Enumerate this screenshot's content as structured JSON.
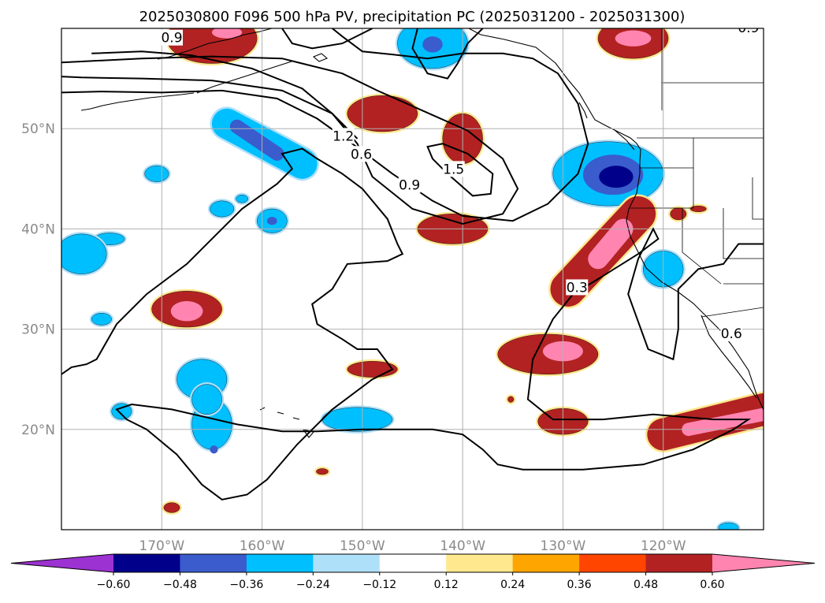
{
  "chart_data": {
    "type": "map-contour",
    "title": "2025030800 F096 500 hPa PV, precipitation PC (2025031200 - 2025031300)",
    "lon_range": [
      -180,
      -110
    ],
    "lat_range": [
      10,
      60
    ],
    "xtick_labels": [
      {
        "lon": -170,
        "label": "170°W"
      },
      {
        "lon": -160,
        "label": "160°W"
      },
      {
        "lon": -150,
        "label": "150°W"
      },
      {
        "lon": -140,
        "label": "140°W"
      },
      {
        "lon": -130,
        "label": "130°W"
      },
      {
        "lon": -120,
        "label": "120°W"
      }
    ],
    "ytick_labels": [
      {
        "lat": 20,
        "label": "20°N"
      },
      {
        "lat": 30,
        "label": "30°N"
      },
      {
        "lat": 40,
        "label": "40°N"
      },
      {
        "lat": 50,
        "label": "50°N"
      }
    ],
    "grid": true,
    "pv_contour_labels": [
      {
        "value": "0.9",
        "lon": -169.0,
        "lat": 59.0
      },
      {
        "value": "0.9",
        "lon": -147.5,
        "lat": 60.5
      },
      {
        "value": "1.2",
        "lon": -151.9,
        "lat": 49.2
      },
      {
        "value": "0.6",
        "lon": -150.1,
        "lat": 47.4
      },
      {
        "value": "0.9",
        "lon": -145.3,
        "lat": 44.3
      },
      {
        "value": "1.5",
        "lon": -140.9,
        "lat": 45.9
      },
      {
        "value": "0.3",
        "lon": -128.6,
        "lat": 34.1
      },
      {
        "value": "0.6",
        "lon": -119.6,
        "lat": 61.1
      },
      {
        "value": "0.9",
        "lon": -111.5,
        "lat": 60.0
      },
      {
        "value": "0.6",
        "lon": -113.2,
        "lat": 29.5
      }
    ],
    "colorbar": {
      "levels": [
        -0.72,
        -0.6,
        -0.48,
        -0.36,
        -0.24,
        -0.12,
        0.12,
        0.24,
        0.36,
        0.48,
        0.6,
        0.72
      ],
      "tick_labels": [
        "−0.60",
        "−0.48",
        "−0.36",
        "−0.24",
        "−0.12",
        "0.12",
        "0.24",
        "0.36",
        "0.48",
        "0.60"
      ],
      "colors": [
        "#9c32d2",
        "#00008b",
        "#3a5ccc",
        "#00bfff",
        "#afe0fa",
        "#ffffff",
        "#ffe88e",
        "#ffa500",
        "#ff4500",
        "#b22222",
        "#ff85b0"
      ],
      "extend": "both"
    },
    "precip_blobs": [
      {
        "lon": -165.0,
        "lat": 59.0,
        "rlon": 4.5,
        "rlat": 2.5,
        "value": 0.4
      },
      {
        "lon": -163.5,
        "lat": 59.6,
        "rlon": 1.5,
        "rlat": 0.6,
        "value": 0.5
      },
      {
        "lon": -143.0,
        "lat": 58.5,
        "rlon": 3.5,
        "rlat": 2.5,
        "value": -0.4
      },
      {
        "lon": -143.0,
        "lat": 58.4,
        "rlon": 1.0,
        "rlat": 0.8,
        "value": -0.5
      },
      {
        "lon": -148.0,
        "lat": 51.5,
        "rlon": 3.5,
        "rlat": 1.8,
        "value": 0.4
      },
      {
        "lon": -140.0,
        "lat": 49.0,
        "rlon": 2.0,
        "rlat": 2.5,
        "value": 0.4
      },
      {
        "lon": -141.0,
        "lat": 40.0,
        "rlon": 3.5,
        "rlat": 1.5,
        "value": 0.4
      },
      {
        "lon": -123.0,
        "lat": 59.0,
        "rlon": 3.5,
        "rlat": 2.0,
        "value": 0.4
      },
      {
        "lon": -123.0,
        "lat": 59.0,
        "rlon": 1.8,
        "rlat": 0.8,
        "value": 0.5
      },
      {
        "lon": -125.5,
        "lat": 45.5,
        "rlon": 5.5,
        "rlat": 3.2,
        "value": -0.4
      },
      {
        "lon": -125.0,
        "lat": 45.4,
        "rlon": 3.0,
        "rlat": 2.0,
        "value": -0.5
      },
      {
        "lon": -124.7,
        "lat": 45.2,
        "rlon": 1.7,
        "rlat": 1.1,
        "value": -0.62
      },
      {
        "lon": -118.5,
        "lat": 41.5,
        "rlon": 0.8,
        "rlat": 0.6,
        "value": 0.4
      },
      {
        "lon": -120.0,
        "lat": 36.0,
        "rlon": 2.0,
        "rlat": 1.8,
        "value": -0.4
      },
      {
        "lon": -167.5,
        "lat": 32.0,
        "rlon": 3.5,
        "rlat": 1.8,
        "value": 0.4
      },
      {
        "lon": -167.5,
        "lat": 31.8,
        "rlon": 1.6,
        "rlat": 1.0,
        "value": 0.5
      },
      {
        "lon": -149.0,
        "lat": 26.0,
        "rlon": 2.5,
        "rlat": 0.8,
        "value": 0.4
      },
      {
        "lon": -131.5,
        "lat": 27.5,
        "rlon": 5.0,
        "rlat": 2.0,
        "value": 0.4
      },
      {
        "lon": -130.0,
        "lat": 27.8,
        "rlon": 2.0,
        "rlat": 1.0,
        "value": 0.5
      },
      {
        "lon": -130.0,
        "lat": 20.8,
        "rlon": 2.5,
        "rlat": 1.3,
        "value": 0.4
      },
      {
        "lon": -150.5,
        "lat": 21.0,
        "rlon": 3.5,
        "rlat": 1.2,
        "value": -0.4
      },
      {
        "lon": -174.0,
        "lat": 21.8,
        "rlon": 1.0,
        "rlat": 0.8,
        "value": -0.4
      },
      {
        "lon": -176.0,
        "lat": 31.0,
        "rlon": 1.0,
        "rlat": 0.6,
        "value": -0.4
      },
      {
        "lon": -175.2,
        "lat": 39.0,
        "rlon": 1.5,
        "rlat": 0.6,
        "value": -0.4
      },
      {
        "lon": -178.0,
        "lat": 37.5,
        "rlon": 2.5,
        "rlat": 2.0,
        "value": -0.4
      },
      {
        "lon": -166.0,
        "lat": 25.0,
        "rlon": 2.5,
        "rlat": 2.0,
        "value": -0.4
      },
      {
        "lon": -165.0,
        "lat": 20.5,
        "rlon": 2.0,
        "rlat": 2.5,
        "value": -0.4
      },
      {
        "lon": -164.6,
        "lat": 22.2,
        "rlon": 0.4,
        "rlat": 0.4,
        "value": -0.5
      },
      {
        "lon": -164.8,
        "lat": 18.0,
        "rlon": 0.4,
        "rlat": 0.4,
        "value": -0.5
      },
      {
        "lon": -165.5,
        "lat": 23.0,
        "rlon": 1.5,
        "rlat": 1.5,
        "value": -0.4
      },
      {
        "lon": -164.0,
        "lat": 42.0,
        "rlon": 1.2,
        "rlat": 0.8,
        "value": -0.4
      },
      {
        "lon": -159.0,
        "lat": 40.8,
        "rlon": 1.5,
        "rlat": 1.2,
        "value": -0.4
      },
      {
        "lon": -159.0,
        "lat": 40.8,
        "rlon": 0.5,
        "rlat": 0.4,
        "value": -0.5
      },
      {
        "lon": -170.5,
        "lat": 45.5,
        "rlon": 1.2,
        "rlat": 0.8,
        "value": -0.4
      },
      {
        "lon": -162.0,
        "lat": 43.0,
        "rlon": 0.6,
        "rlat": 0.4,
        "value": -0.4
      },
      {
        "lon": -169.0,
        "lat": 12.2,
        "rlon": 0.8,
        "rlat": 0.5,
        "value": 0.4
      },
      {
        "lon": -113.5,
        "lat": 10.2,
        "rlon": 1.0,
        "rlat": 0.5,
        "value": -0.4
      },
      {
        "lon": -154.0,
        "lat": 15.8,
        "rlon": 0.6,
        "rlat": 0.3,
        "value": 0.4
      },
      {
        "lon": -135.2,
        "lat": 23.0,
        "rlon": 0.3,
        "rlat": 0.3,
        "value": 0.4
      },
      {
        "lon": -116.5,
        "lat": 42.0,
        "rlon": 0.8,
        "rlat": 0.3,
        "value": 0.4
      }
    ],
    "precip_bands": [
      {
        "lon1": -163.5,
        "lat1": 50.5,
        "lon2": -156.0,
        "lat2": 46.5,
        "width_deg": 3.0,
        "value": -0.4
      },
      {
        "lon1": -162.5,
        "lat1": 50.2,
        "lon2": -158.5,
        "lat2": 47.5,
        "width_deg": 1.4,
        "value": -0.5
      },
      {
        "lon1": -129.5,
        "lat1": 34.0,
        "lon2": -122.5,
        "lat2": 41.5,
        "width_deg": 3.5,
        "value": 0.4
      },
      {
        "lon1": -126.5,
        "lat1": 37.0,
        "lon2": -124.0,
        "lat2": 40.0,
        "width_deg": 2.0,
        "value": 0.5
      },
      {
        "lon1": -126.0,
        "lat1": 37.6,
        "lon2": -124.6,
        "lat2": 39.4,
        "width_deg": 1.2,
        "value": 0.62
      },
      {
        "lon1": -120.0,
        "lat1": 19.5,
        "lon2": -110.0,
        "lat2": 22.0,
        "width_deg": 3.2,
        "value": 0.4
      },
      {
        "lon1": -117.5,
        "lat1": 20.0,
        "lon2": -110.0,
        "lat2": 21.5,
        "width_deg": 1.3,
        "value": 0.5
      }
    ],
    "pv_lines": [
      [
        [
          -180.0,
          55.2
        ],
        [
          -178.0,
          55.1
        ],
        [
          -172.0,
          55.0
        ],
        [
          -165.0,
          54.8
        ],
        [
          -158.0,
          53.8
        ],
        [
          -153.0,
          51.5
        ],
        [
          -150.5,
          48.5
        ],
        [
          -149.0,
          45.2
        ],
        [
          -145.0,
          42.0
        ],
        [
          -140.0,
          40.5
        ],
        [
          -136.0,
          41.5
        ],
        [
          -134.5,
          44.0
        ],
        [
          -136.0,
          47.0
        ],
        [
          -139.5,
          49.8
        ],
        [
          -144.0,
          51.8
        ],
        [
          -148.5,
          53.8
        ],
        [
          -152.0,
          55.5
        ],
        [
          -158.0,
          57.0
        ],
        [
          -165.0,
          57.2
        ],
        [
          -172.0,
          57.0
        ],
        [
          -178.0,
          56.7
        ],
        [
          -180.0,
          56.6
        ]
      ],
      [
        [
          -180.0,
          53.6
        ],
        [
          -176.0,
          53.7
        ],
        [
          -170.0,
          53.6
        ],
        [
          -164.0,
          53.8
        ],
        [
          -158.5,
          53.0
        ],
        [
          -154.5,
          51.0
        ],
        [
          -151.0,
          48.5
        ],
        [
          -147.0,
          45.5
        ],
        [
          -143.0,
          42.8
        ],
        [
          -140.0,
          41.3
        ],
        [
          -135.0,
          40.8
        ],
        [
          -131.5,
          42.5
        ],
        [
          -128.5,
          45.5
        ],
        [
          -127.5,
          48.5
        ],
        [
          -128.5,
          52.5
        ],
        [
          -130.5,
          55.5
        ],
        [
          -133.0,
          57.0
        ],
        [
          -136.0,
          57.5
        ],
        [
          -140.0,
          57.5
        ],
        [
          -143.5,
          57.0
        ],
        [
          -147.0,
          57.4
        ],
        [
          -150.0,
          57.7
        ],
        [
          -152.0,
          59.2
        ],
        [
          -153.0,
          60.0
        ]
      ],
      [
        [
          -138.0,
          60.0
        ],
        [
          -139.5,
          58.5
        ],
        [
          -140.5,
          56.5
        ],
        [
          -141.5,
          55.0
        ],
        [
          -143.5,
          55.5
        ],
        [
          -145.0,
          58.0
        ],
        [
          -144.5,
          60.0
        ]
      ],
      [
        [
          -158.0,
          60.0
        ],
        [
          -157.0,
          58.5
        ],
        [
          -155.0,
          58.0
        ],
        [
          -152.0,
          58.5
        ],
        [
          -150.0,
          59.5
        ],
        [
          -149.0,
          60.0
        ]
      ],
      [
        [
          -177.0,
          57.5
        ],
        [
          -172.0,
          57.7
        ],
        [
          -167.0,
          57.3
        ],
        [
          -161.0,
          56.0
        ],
        [
          -156.0,
          54.0
        ],
        [
          -153.0,
          51.5
        ],
        [
          -150.5,
          49.0
        ]
      ],
      [
        [
          -141.5,
          45.5
        ],
        [
          -143.0,
          47.0
        ],
        [
          -143.5,
          48.2
        ],
        [
          -142.0,
          48.5
        ],
        [
          -139.5,
          47.5
        ],
        [
          -137.0,
          45.5
        ],
        [
          -137.2,
          43.5
        ],
        [
          -139.0,
          43.3
        ],
        [
          -141.5,
          45.5
        ]
      ],
      [
        [
          -180.0,
          25.5
        ],
        [
          -179.0,
          26.2
        ],
        [
          -177.5,
          26.5
        ],
        [
          -176.5,
          27.0
        ],
        [
          -174.5,
          30.5
        ],
        [
          -171.5,
          33.5
        ],
        [
          -167.5,
          36.5
        ],
        [
          -162.0,
          42.0
        ],
        [
          -158.5,
          44.5
        ],
        [
          -157.0,
          46.0
        ],
        [
          -158.0,
          47.5
        ],
        [
          -156.0,
          48.0
        ],
        [
          -154.5,
          47.0
        ],
        [
          -152.0,
          45.5
        ],
        [
          -150.0,
          44.0
        ],
        [
          -147.5,
          41.0
        ],
        [
          -146.5,
          38.5
        ],
        [
          -146.0,
          37.5
        ],
        [
          -147.5,
          36.8
        ],
        [
          -151.5,
          36.5
        ],
        [
          -153.0,
          34.0
        ],
        [
          -155.0,
          32.5
        ],
        [
          -154.5,
          30.5
        ],
        [
          -152.0,
          29.0
        ],
        [
          -150.5,
          28.0
        ],
        [
          -148.5,
          28.0
        ],
        [
          -147.0,
          26.0
        ],
        [
          -149.0,
          25.0
        ],
        [
          -153.0,
          22.0
        ],
        [
          -156.5,
          18.5
        ],
        [
          -159.5,
          15.0
        ],
        [
          -161.5,
          13.5
        ],
        [
          -164.0,
          13.0
        ],
        [
          -166.0,
          14.5
        ],
        [
          -168.5,
          17.5
        ],
        [
          -171.5,
          20.0
        ],
        [
          -173.5,
          21.0
        ],
        [
          -174.5,
          22.0
        ],
        [
          -173.0,
          22.5
        ],
        [
          -169.0,
          22.0
        ],
        [
          -162.5,
          20.5
        ],
        [
          -158.0,
          19.8
        ],
        [
          -154.5,
          19.8
        ],
        [
          -150.0,
          20.0
        ],
        [
          -146.5,
          20.0
        ],
        [
          -143.0,
          20.0
        ],
        [
          -140.0,
          19.5
        ],
        [
          -138.0,
          18.0
        ],
        [
          -136.5,
          16.5
        ],
        [
          -134.0,
          16.0
        ],
        [
          -128.0,
          16.0
        ],
        [
          -122.0,
          16.5
        ],
        [
          -117.0,
          18.0
        ],
        [
          -113.0,
          20.0
        ],
        [
          -111.5,
          21.0
        ],
        [
          -115.0,
          21.0
        ],
        [
          -121.0,
          21.5
        ],
        [
          -126.0,
          21.0
        ],
        [
          -131.0,
          21.0
        ],
        [
          -133.5,
          23.0
        ],
        [
          -133.0,
          27.0
        ],
        [
          -131.0,
          31.0
        ],
        [
          -129.0,
          33.5
        ],
        [
          -126.5,
          35.0
        ],
        [
          -122.5,
          37.5
        ],
        [
          -120.5,
          39.0
        ],
        [
          -121.0,
          40.0
        ],
        [
          -122.5,
          37.0
        ],
        [
          -123.5,
          33.5
        ],
        [
          -121.5,
          28.0
        ],
        [
          -119.0,
          27.0
        ],
        [
          -118.5,
          30.0
        ],
        [
          -118.5,
          34.0
        ],
        [
          -116.5,
          36.0
        ],
        [
          -114.0,
          36.5
        ],
        [
          -112.5,
          38.5
        ],
        [
          -110.0,
          38.5
        ]
      ]
    ]
  }
}
